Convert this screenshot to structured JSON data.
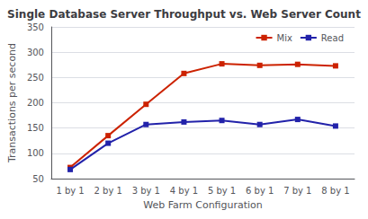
{
  "chart_data": {
    "type": "line",
    "title": "Single Database Server Throughput vs. Web Server Count",
    "xlabel": "Web Farm Configuration",
    "ylabel": "Transactions per second",
    "categories": [
      "1 by 1",
      "2 by 1",
      "3 by 1",
      "4 by 1",
      "5 by 1",
      "6 by 1",
      "7 by 1",
      "8 by 1"
    ],
    "series": [
      {
        "name": "Mix",
        "color": "#CC2200",
        "values": [
          72,
          135,
          197,
          258,
          277,
          274,
          276,
          273
        ]
      },
      {
        "name": "Read",
        "color": "#2222AA",
        "values": [
          68,
          120,
          157,
          162,
          165,
          157,
          167,
          154
        ]
      }
    ],
    "ylim": [
      50,
      350
    ],
    "yticks": [
      50,
      100,
      150,
      200,
      250,
      300,
      350
    ],
    "grid": true,
    "legend": "upper right",
    "marker": "square",
    "line_style": "solid"
  }
}
